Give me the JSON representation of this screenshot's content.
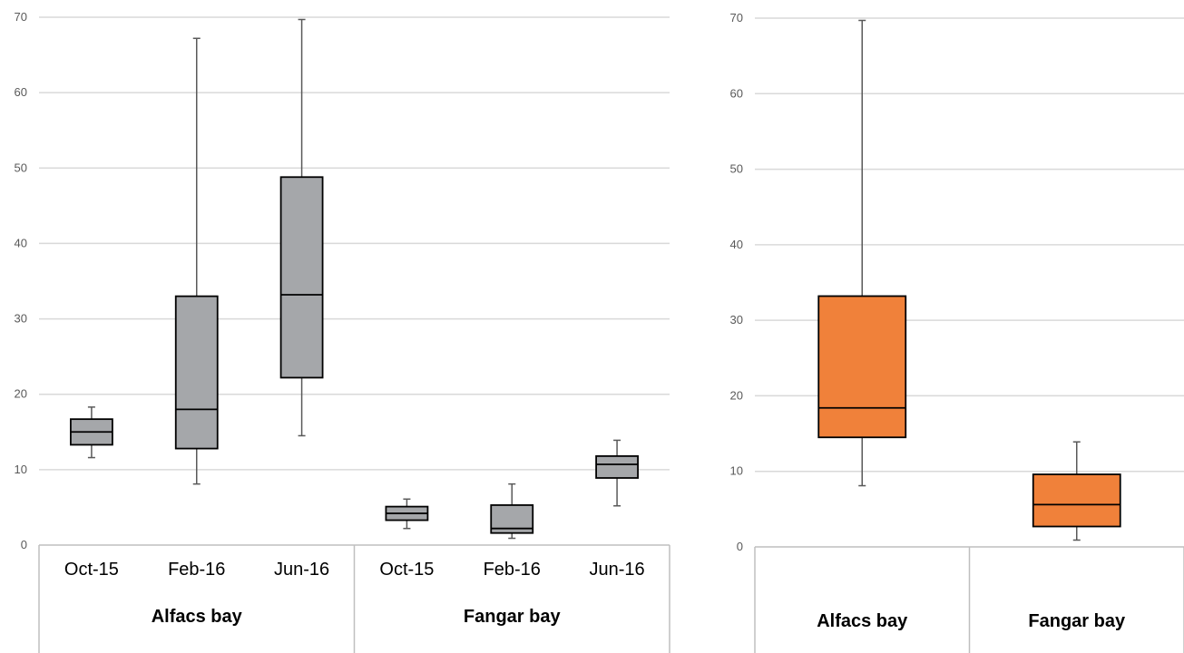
{
  "chart_data": [
    {
      "type": "box",
      "ylim": [
        0,
        70
      ],
      "yticks": [
        "0",
        "10",
        "20",
        "30",
        "40",
        "50",
        "60",
        "70"
      ],
      "grid": true,
      "groups": [
        {
          "label": "Alfacs bay",
          "categories": [
            "Oct-15",
            "Feb-16",
            "Jun-16"
          ]
        },
        {
          "label": "Fangar bay",
          "categories": [
            "Oct-15",
            "Feb-16",
            "Jun-16"
          ]
        }
      ],
      "box_color": "#a5a7aa",
      "boxes": [
        {
          "min": 11.6,
          "q1": 13.3,
          "median": 15.0,
          "q3": 16.7,
          "max": 18.3
        },
        {
          "min": 8.1,
          "q1": 12.8,
          "median": 18.0,
          "q3": 33.0,
          "max": 67.2
        },
        {
          "min": 14.5,
          "q1": 22.2,
          "median": 33.2,
          "q3": 48.8,
          "max": 69.7
        },
        {
          "min": 2.2,
          "q1": 3.3,
          "median": 4.2,
          "q3": 5.1,
          "max": 6.1
        },
        {
          "min": 0.9,
          "q1": 1.6,
          "median": 2.2,
          "q3": 5.3,
          "max": 8.1
        },
        {
          "min": 5.2,
          "q1": 8.9,
          "median": 10.7,
          "q3": 11.8,
          "max": 13.9
        }
      ]
    },
    {
      "type": "box",
      "ylim": [
        0,
        70
      ],
      "yticks": [
        "0",
        "10",
        "20",
        "30",
        "40",
        "50",
        "60",
        "70"
      ],
      "grid": true,
      "categories": [
        "Alfacs bay",
        "Fangar bay"
      ],
      "box_color": "#f0813a",
      "boxes": [
        {
          "min": 8.1,
          "q1": 14.5,
          "median": 18.4,
          "q3": 33.2,
          "max": 69.7
        },
        {
          "min": 0.9,
          "q1": 2.7,
          "median": 5.6,
          "q3": 9.6,
          "max": 13.9
        }
      ]
    }
  ]
}
